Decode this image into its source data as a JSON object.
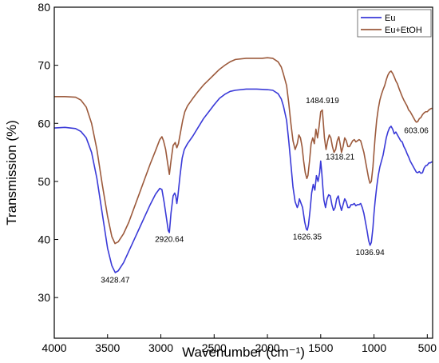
{
  "chart_data": {
    "type": "line",
    "xlabel": "Wavenumber (cm⁻¹)",
    "ylabel": "Transmission (%)",
    "xlim": [
      4000,
      450
    ],
    "ylim": [
      23,
      80
    ],
    "x_reversed": true,
    "grid": false,
    "legend_position": "top-right",
    "x_ticks": [
      4000,
      3500,
      3000,
      2500,
      2000,
      1500,
      1000,
      500
    ],
    "y_ticks": [
      30,
      40,
      50,
      60,
      70,
      80
    ],
    "x_tick_labels": [
      "4000",
      "3500",
      "3000",
      "2500",
      "2000",
      "1500",
      "1000",
      "500"
    ],
    "y_tick_labels": [
      "30",
      "40",
      "50",
      "60",
      "70",
      "80"
    ],
    "series": [
      {
        "name": "Eu",
        "color": "#3a3ad8",
        "points": [
          [
            4000,
            59.2
          ],
          [
            3900,
            59.3
          ],
          [
            3800,
            59.1
          ],
          [
            3750,
            58.6
          ],
          [
            3700,
            57.5
          ],
          [
            3650,
            55.0
          ],
          [
            3600,
            50.5
          ],
          [
            3550,
            44.5
          ],
          [
            3500,
            38.5
          ],
          [
            3460,
            35.5
          ],
          [
            3428,
            34.3
          ],
          [
            3400,
            34.6
          ],
          [
            3350,
            36.0
          ],
          [
            3300,
            38.0
          ],
          [
            3250,
            40.0
          ],
          [
            3200,
            42.0
          ],
          [
            3150,
            44.0
          ],
          [
            3100,
            46.0
          ],
          [
            3050,
            47.8
          ],
          [
            3010,
            48.8
          ],
          [
            2990,
            48.6
          ],
          [
            2970,
            46.5
          ],
          [
            2950,
            44.0
          ],
          [
            2930,
            41.5
          ],
          [
            2920,
            41.2
          ],
          [
            2905,
            44.5
          ],
          [
            2885,
            47.5
          ],
          [
            2870,
            48.0
          ],
          [
            2860,
            47.5
          ],
          [
            2850,
            46.2
          ],
          [
            2840,
            47.5
          ],
          [
            2820,
            51.0
          ],
          [
            2800,
            54.0
          ],
          [
            2780,
            55.5
          ],
          [
            2750,
            56.5
          ],
          [
            2700,
            57.8
          ],
          [
            2650,
            59.3
          ],
          [
            2600,
            60.8
          ],
          [
            2550,
            62.0
          ],
          [
            2500,
            63.2
          ],
          [
            2450,
            64.3
          ],
          [
            2400,
            65.0
          ],
          [
            2350,
            65.5
          ],
          [
            2300,
            65.7
          ],
          [
            2200,
            65.9
          ],
          [
            2100,
            65.9
          ],
          [
            2000,
            65.8
          ],
          [
            1950,
            65.7
          ],
          [
            1900,
            65.1
          ],
          [
            1870,
            64.2
          ],
          [
            1850,
            63.0
          ],
          [
            1820,
            60.5
          ],
          [
            1800,
            57.0
          ],
          [
            1780,
            53.0
          ],
          [
            1760,
            49.0
          ],
          [
            1740,
            46.5
          ],
          [
            1720,
            45.5
          ],
          [
            1710,
            46.0
          ],
          [
            1700,
            47.0
          ],
          [
            1690,
            46.5
          ],
          [
            1670,
            45.5
          ],
          [
            1650,
            43.0
          ],
          [
            1635,
            41.8
          ],
          [
            1626,
            41.6
          ],
          [
            1615,
            42.5
          ],
          [
            1600,
            45.0
          ],
          [
            1585,
            48.0
          ],
          [
            1570,
            49.5
          ],
          [
            1555,
            48.5
          ],
          [
            1540,
            51.0
          ],
          [
            1525,
            50.0
          ],
          [
            1510,
            51.5
          ],
          [
            1500,
            53.5
          ],
          [
            1490,
            51.5
          ],
          [
            1480,
            49.0
          ],
          [
            1470,
            46.8
          ],
          [
            1455,
            45.5
          ],
          [
            1440,
            47.0
          ],
          [
            1425,
            47.7
          ],
          [
            1410,
            47.5
          ],
          [
            1395,
            46.0
          ],
          [
            1380,
            45.0
          ],
          [
            1365,
            45.5
          ],
          [
            1350,
            47.0
          ],
          [
            1335,
            47.5
          ],
          [
            1320,
            46.0
          ],
          [
            1305,
            45.0
          ],
          [
            1290,
            46.0
          ],
          [
            1275,
            47.0
          ],
          [
            1260,
            46.5
          ],
          [
            1245,
            45.5
          ],
          [
            1230,
            45.5
          ],
          [
            1215,
            46.0
          ],
          [
            1200,
            46.0
          ],
          [
            1185,
            46.2
          ],
          [
            1170,
            45.8
          ],
          [
            1155,
            46.0
          ],
          [
            1140,
            46.0
          ],
          [
            1125,
            46.2
          ],
          [
            1110,
            45.5
          ],
          [
            1095,
            44.5
          ],
          [
            1080,
            43.0
          ],
          [
            1065,
            41.5
          ],
          [
            1050,
            39.8
          ],
          [
            1037,
            39.0
          ],
          [
            1025,
            39.5
          ],
          [
            1010,
            42.0
          ],
          [
            1000,
            44.5
          ],
          [
            990,
            46.5
          ],
          [
            975,
            49.0
          ],
          [
            960,
            51.0
          ],
          [
            945,
            52.5
          ],
          [
            930,
            53.5
          ],
          [
            915,
            54.5
          ],
          [
            900,
            56.0
          ],
          [
            885,
            57.5
          ],
          [
            870,
            58.5
          ],
          [
            855,
            59.2
          ],
          [
            840,
            59.5
          ],
          [
            825,
            59.0
          ],
          [
            810,
            58.2
          ],
          [
            795,
            58.5
          ],
          [
            780,
            58.0
          ],
          [
            765,
            57.5
          ],
          [
            750,
            57.0
          ],
          [
            735,
            56.8
          ],
          [
            720,
            56.0
          ],
          [
            705,
            55.5
          ],
          [
            690,
            54.8
          ],
          [
            675,
            54.2
          ],
          [
            660,
            53.5
          ],
          [
            645,
            53.0
          ],
          [
            630,
            52.5
          ],
          [
            615,
            52.0
          ],
          [
            603,
            51.6
          ],
          [
            590,
            51.5
          ],
          [
            575,
            51.7
          ],
          [
            560,
            51.4
          ],
          [
            545,
            51.5
          ],
          [
            530,
            52.3
          ],
          [
            515,
            52.7
          ],
          [
            500,
            52.8
          ],
          [
            485,
            53.2
          ],
          [
            470,
            53.2
          ],
          [
            455,
            53.4
          ]
        ]
      },
      {
        "name": "Eu+EtOH",
        "color": "#9c5a3c",
        "points": [
          [
            4000,
            64.6
          ],
          [
            3900,
            64.6
          ],
          [
            3800,
            64.5
          ],
          [
            3750,
            64.0
          ],
          [
            3700,
            62.8
          ],
          [
            3650,
            60.0
          ],
          [
            3600,
            55.5
          ],
          [
            3550,
            49.5
          ],
          [
            3500,
            44.0
          ],
          [
            3460,
            40.5
          ],
          [
            3430,
            39.3
          ],
          [
            3400,
            39.6
          ],
          [
            3350,
            41.0
          ],
          [
            3300,
            43.0
          ],
          [
            3250,
            45.5
          ],
          [
            3200,
            48.0
          ],
          [
            3150,
            50.5
          ],
          [
            3100,
            53.0
          ],
          [
            3050,
            55.3
          ],
          [
            3010,
            57.2
          ],
          [
            2990,
            57.7
          ],
          [
            2975,
            57.0
          ],
          [
            2955,
            55.5
          ],
          [
            2935,
            53.0
          ],
          [
            2920,
            51.2
          ],
          [
            2905,
            53.5
          ],
          [
            2885,
            56.2
          ],
          [
            2865,
            56.7
          ],
          [
            2850,
            55.8
          ],
          [
            2835,
            56.5
          ],
          [
            2815,
            58.5
          ],
          [
            2795,
            60.5
          ],
          [
            2775,
            62.0
          ],
          [
            2750,
            63.0
          ],
          [
            2700,
            64.3
          ],
          [
            2650,
            65.5
          ],
          [
            2600,
            66.6
          ],
          [
            2550,
            67.5
          ],
          [
            2500,
            68.4
          ],
          [
            2450,
            69.3
          ],
          [
            2400,
            70.0
          ],
          [
            2350,
            70.6
          ],
          [
            2300,
            71.0
          ],
          [
            2200,
            71.2
          ],
          [
            2100,
            71.2
          ],
          [
            2050,
            71.2
          ],
          [
            2000,
            71.3
          ],
          [
            1950,
            71.2
          ],
          [
            1900,
            70.6
          ],
          [
            1870,
            69.7
          ],
          [
            1850,
            68.5
          ],
          [
            1820,
            66.5
          ],
          [
            1800,
            63.5
          ],
          [
            1780,
            60.0
          ],
          [
            1760,
            57.0
          ],
          [
            1740,
            55.5
          ],
          [
            1720,
            56.5
          ],
          [
            1705,
            58.0
          ],
          [
            1690,
            57.5
          ],
          [
            1675,
            56.0
          ],
          [
            1660,
            53.5
          ],
          [
            1645,
            51.5
          ],
          [
            1630,
            50.5
          ],
          [
            1620,
            51.0
          ],
          [
            1605,
            53.5
          ],
          [
            1590,
            56.5
          ],
          [
            1575,
            57.5
          ],
          [
            1560,
            56.5
          ],
          [
            1545,
            59.0
          ],
          [
            1530,
            57.5
          ],
          [
            1515,
            59.5
          ],
          [
            1500,
            62.0
          ],
          [
            1485,
            62.3
          ],
          [
            1475,
            60.0
          ],
          [
            1465,
            57.5
          ],
          [
            1450,
            55.5
          ],
          [
            1435,
            57.0
          ],
          [
            1420,
            58.0
          ],
          [
            1405,
            57.5
          ],
          [
            1390,
            56.0
          ],
          [
            1375,
            55.0
          ],
          [
            1360,
            55.5
          ],
          [
            1345,
            57.0
          ],
          [
            1330,
            57.7
          ],
          [
            1318,
            56.5
          ],
          [
            1305,
            55.0
          ],
          [
            1290,
            56.0
          ],
          [
            1275,
            57.5
          ],
          [
            1260,
            57.0
          ],
          [
            1245,
            56.0
          ],
          [
            1230,
            56.0
          ],
          [
            1215,
            56.5
          ],
          [
            1200,
            57.0
          ],
          [
            1185,
            57.2
          ],
          [
            1170,
            56.8
          ],
          [
            1155,
            57.0
          ],
          [
            1140,
            57.2
          ],
          [
            1125,
            57.0
          ],
          [
            1110,
            56.0
          ],
          [
            1095,
            55.0
          ],
          [
            1080,
            53.5
          ],
          [
            1065,
            52.0
          ],
          [
            1050,
            50.5
          ],
          [
            1038,
            49.7
          ],
          [
            1025,
            50.0
          ],
          [
            1010,
            52.5
          ],
          [
            1000,
            55.0
          ],
          [
            990,
            57.5
          ],
          [
            975,
            60.5
          ],
          [
            960,
            62.5
          ],
          [
            945,
            64.0
          ],
          [
            930,
            65.0
          ],
          [
            915,
            65.8
          ],
          [
            900,
            66.5
          ],
          [
            885,
            67.5
          ],
          [
            870,
            68.3
          ],
          [
            855,
            68.8
          ],
          [
            840,
            69.0
          ],
          [
            825,
            68.6
          ],
          [
            810,
            68.0
          ],
          [
            795,
            67.3
          ],
          [
            780,
            66.8
          ],
          [
            765,
            66.0
          ],
          [
            750,
            65.3
          ],
          [
            735,
            64.6
          ],
          [
            720,
            64.0
          ],
          [
            705,
            63.5
          ],
          [
            690,
            63.0
          ],
          [
            675,
            62.3
          ],
          [
            660,
            62.0
          ],
          [
            645,
            61.5
          ],
          [
            630,
            61.0
          ],
          [
            615,
            60.5
          ],
          [
            603,
            60.2
          ],
          [
            590,
            60.3
          ],
          [
            575,
            60.8
          ],
          [
            560,
            61.0
          ],
          [
            545,
            61.5
          ],
          [
            530,
            61.8
          ],
          [
            515,
            62.0
          ],
          [
            500,
            62.0
          ],
          [
            485,
            62.3
          ],
          [
            470,
            62.5
          ],
          [
            455,
            62.6
          ]
        ]
      }
    ],
    "annotations": [
      {
        "text": "3428.47",
        "x": 3428,
        "y": 32.6
      },
      {
        "text": "2920.64",
        "x": 2920,
        "y": 39.6
      },
      {
        "text": "1626.35",
        "x": 1626,
        "y": 40.0
      },
      {
        "text": "1484.919",
        "x": 1484,
        "y": 63.5
      },
      {
        "text": "1318.21",
        "x": 1318,
        "y": 53.8
      },
      {
        "text": "1036.94",
        "x": 1037,
        "y": 37.3
      },
      {
        "text": "603.06",
        "x": 603,
        "y": 58.3
      }
    ]
  }
}
